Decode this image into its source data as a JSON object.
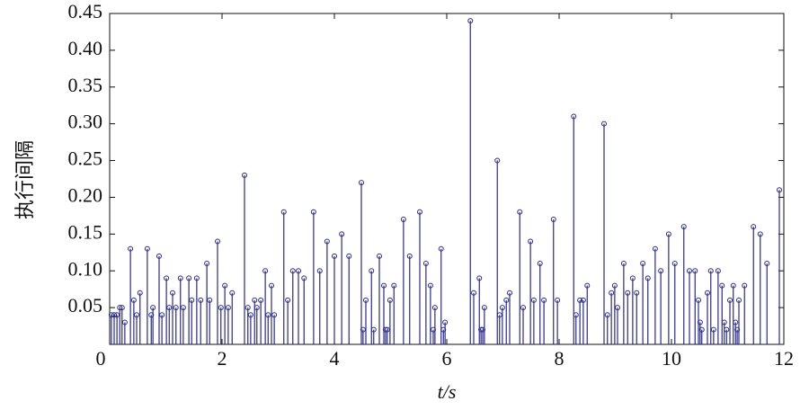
{
  "chart_data": {
    "type": "stem",
    "xlabel": "t/s",
    "ylabel": "执行间隔",
    "color": "#2a2a8c",
    "x": [
      0.03,
      0.08,
      0.13,
      0.18,
      0.22,
      0.27,
      0.37,
      0.43,
      0.48,
      0.54,
      0.67,
      0.74,
      0.77,
      0.88,
      0.93,
      1.01,
      1.06,
      1.12,
      1.18,
      1.26,
      1.31,
      1.41,
      1.46,
      1.55,
      1.62,
      1.73,
      1.78,
      1.92,
      1.98,
      2.05,
      2.11,
      2.18,
      2.4,
      2.46,
      2.51,
      2.58,
      2.62,
      2.69,
      2.77,
      2.82,
      2.88,
      2.93,
      3.1,
      3.17,
      3.26,
      3.36,
      3.46,
      3.63,
      3.74,
      3.87,
      4.0,
      4.13,
      4.26,
      4.48,
      4.51,
      4.56,
      4.66,
      4.7,
      4.8,
      4.88,
      4.91,
      4.94,
      4.99,
      5.06,
      5.23,
      5.34,
      5.52,
      5.63,
      5.71,
      5.76,
      5.79,
      5.9,
      5.94,
      5.97,
      6.42,
      6.48,
      6.58,
      6.61,
      6.64,
      6.67,
      6.9,
      6.94,
      6.99,
      7.06,
      7.12,
      7.3,
      7.36,
      7.49,
      7.55,
      7.66,
      7.73,
      7.9,
      7.97,
      8.26,
      8.3,
      8.37,
      8.43,
      8.5,
      8.8,
      8.86,
      8.93,
      8.99,
      9.04,
      9.15,
      9.22,
      9.31,
      9.38,
      9.49,
      9.58,
      9.71,
      9.81,
      9.95,
      10.06,
      10.22,
      10.32,
      10.42,
      10.48,
      10.51,
      10.54,
      10.64,
      10.7,
      10.75,
      10.83,
      10.9,
      10.94,
      10.98,
      11.04,
      11.1,
      11.14,
      11.17,
      11.2,
      11.3,
      11.46,
      11.58,
      11.7,
      11.92
    ],
    "values": [
      0.04,
      0.04,
      0.04,
      0.05,
      0.05,
      0.03,
      0.13,
      0.06,
      0.04,
      0.07,
      0.13,
      0.04,
      0.05,
      0.12,
      0.04,
      0.09,
      0.05,
      0.07,
      0.05,
      0.09,
      0.05,
      0.09,
      0.06,
      0.09,
      0.06,
      0.11,
      0.06,
      0.14,
      0.05,
      0.08,
      0.05,
      0.07,
      0.23,
      0.05,
      0.04,
      0.06,
      0.05,
      0.06,
      0.1,
      0.04,
      0.08,
      0.04,
      0.18,
      0.06,
      0.1,
      0.1,
      0.09,
      0.18,
      0.1,
      0.14,
      0.12,
      0.15,
      0.12,
      0.22,
      0.02,
      0.06,
      0.1,
      0.02,
      0.12,
      0.08,
      0.02,
      0.02,
      0.06,
      0.08,
      0.17,
      0.12,
      0.18,
      0.11,
      0.08,
      0.02,
      0.05,
      0.13,
      0.02,
      0.03,
      0.44,
      0.07,
      0.09,
      0.02,
      0.02,
      0.05,
      0.25,
      0.04,
      0.05,
      0.06,
      0.07,
      0.18,
      0.05,
      0.14,
      0.06,
      0.11,
      0.06,
      0.17,
      0.06,
      0.31,
      0.04,
      0.06,
      0.06,
      0.08,
      0.3,
      0.04,
      0.07,
      0.08,
      0.05,
      0.11,
      0.07,
      0.09,
      0.07,
      0.11,
      0.09,
      0.13,
      0.1,
      0.15,
      0.11,
      0.16,
      0.1,
      0.1,
      0.06,
      0.03,
      0.02,
      0.07,
      0.1,
      0.02,
      0.1,
      0.08,
      0.03,
      0.02,
      0.06,
      0.08,
      0.03,
      0.02,
      0.06,
      0.08,
      0.16,
      0.15,
      0.11,
      0.21
    ],
    "xlim": [
      0,
      12
    ],
    "xticks": [
      0,
      2,
      4,
      6,
      8,
      10,
      12
    ],
    "ylim": [
      0,
      0.45
    ],
    "yticks": [
      {
        "value": 0.05,
        "label": "0.05"
      },
      {
        "value": 0.1,
        "label": "0.10"
      },
      {
        "value": 0.15,
        "label": "0.15"
      },
      {
        "value": 0.2,
        "label": "0.20"
      },
      {
        "value": 0.25,
        "label": "0.25"
      },
      {
        "value": 0.3,
        "label": "0.30"
      },
      {
        "value": 0.35,
        "label": "0.35"
      },
      {
        "value": 0.4,
        "label": "0.40"
      },
      {
        "value": 0.45,
        "label": "0.45"
      }
    ]
  }
}
